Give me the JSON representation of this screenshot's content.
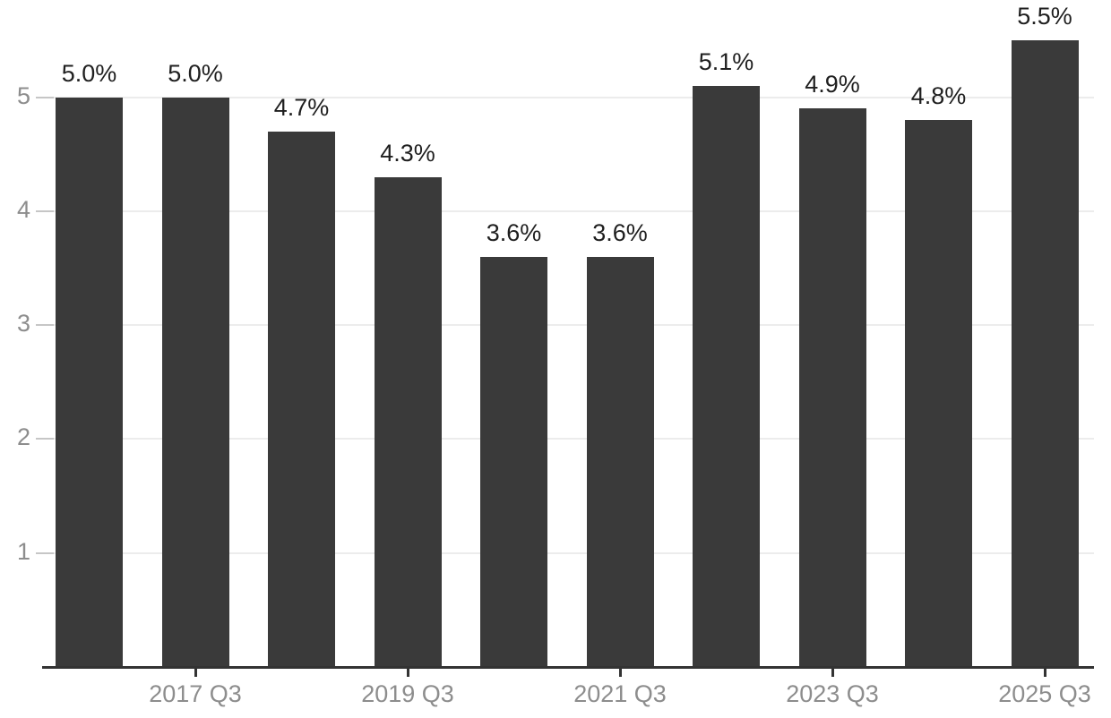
{
  "chart_data": {
    "type": "bar",
    "title": "",
    "xlabel": "",
    "ylabel": "",
    "categories": [
      "",
      "2017 Q3",
      "",
      "2019 Q3",
      "",
      "2021 Q3",
      "",
      "2023 Q3",
      "",
      "2025 Q3"
    ],
    "values": [
      5.0,
      5.0,
      4.7,
      4.3,
      3.6,
      3.6,
      5.1,
      4.9,
      4.8,
      5.5
    ],
    "bar_labels": [
      "5.0%",
      "5.0%",
      "4.7%",
      "4.3%",
      "3.6%",
      "3.6%",
      "5.1%",
      "4.9%",
      "4.8%",
      "5.5%"
    ],
    "y_ticks": [
      "1",
      "2",
      "3",
      "4",
      "5"
    ],
    "ylim": [
      0,
      5.85
    ],
    "grid": "horizontal-major",
    "legend": "none",
    "colors": {
      "bar": "#3a3a3a",
      "value_label": "#1f1f1f",
      "axis_label": "#8d8d8d",
      "gridline": "#ececec",
      "y_tick_mark": "#c6c6c6",
      "axis_line": "#333333",
      "background": "#ffffff"
    }
  }
}
